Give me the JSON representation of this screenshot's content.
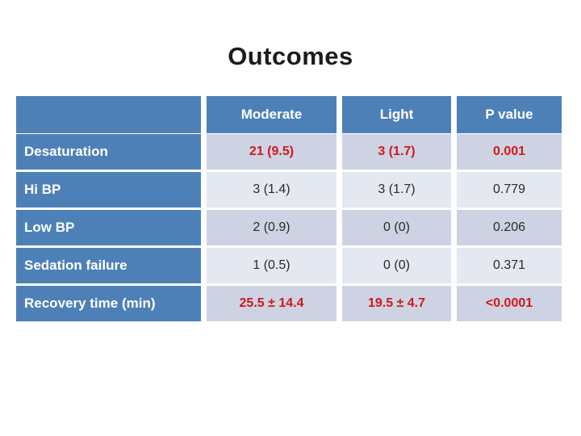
{
  "slide": {
    "title": "Outcomes"
  },
  "table": {
    "columns": {
      "blank": "",
      "moderate": "Moderate",
      "light": "Light",
      "pvalue": "P value"
    },
    "rows": [
      {
        "label": "Desaturation",
        "moderate": "21 (9.5)",
        "light": "3 (1.7)",
        "p": "0.001",
        "highlight": true
      },
      {
        "label": "Hi BP",
        "moderate": "3 (1.4)",
        "light": "3 (1.7)",
        "p": "0.779",
        "highlight": false
      },
      {
        "label": "Low BP",
        "moderate": "2 (0.9)",
        "light": "0 (0)",
        "p": "0.206",
        "highlight": false
      },
      {
        "label": "Sedation failure",
        "moderate": "1 (0.5)",
        "light": "0 (0)",
        "p": "0.371",
        "highlight": false
      },
      {
        "label": "Recovery time (min)",
        "moderate": "25.5 ± 14.4",
        "light": "19.5 ± 4.7",
        "p": "<0.0001",
        "highlight": true
      }
    ],
    "colors": {
      "header_blue": "#4e80b8",
      "band_dark": "#cdd3e2",
      "band_light": "#e4e8f0",
      "highlight_red": "#d2181e",
      "value_black": "#2a2a2a"
    }
  },
  "chart_data": {
    "type": "table",
    "title": "Outcomes",
    "columns": [
      "",
      "Moderate",
      "Light",
      "P value"
    ],
    "rows": [
      [
        "Desaturation",
        "21 (9.5)",
        "3 (1.7)",
        "0.001"
      ],
      [
        "Hi BP",
        "3 (1.4)",
        "3 (1.7)",
        "0.779"
      ],
      [
        "Low BP",
        "2 (0.9)",
        "0 (0)",
        "0.206"
      ],
      [
        "Sedation failure",
        "1 (0.5)",
        "0 (0)",
        "0.371"
      ],
      [
        "Recovery time (min)",
        "25.5 ± 14.4",
        "19.5 ± 4.7",
        "<0.0001"
      ]
    ]
  }
}
